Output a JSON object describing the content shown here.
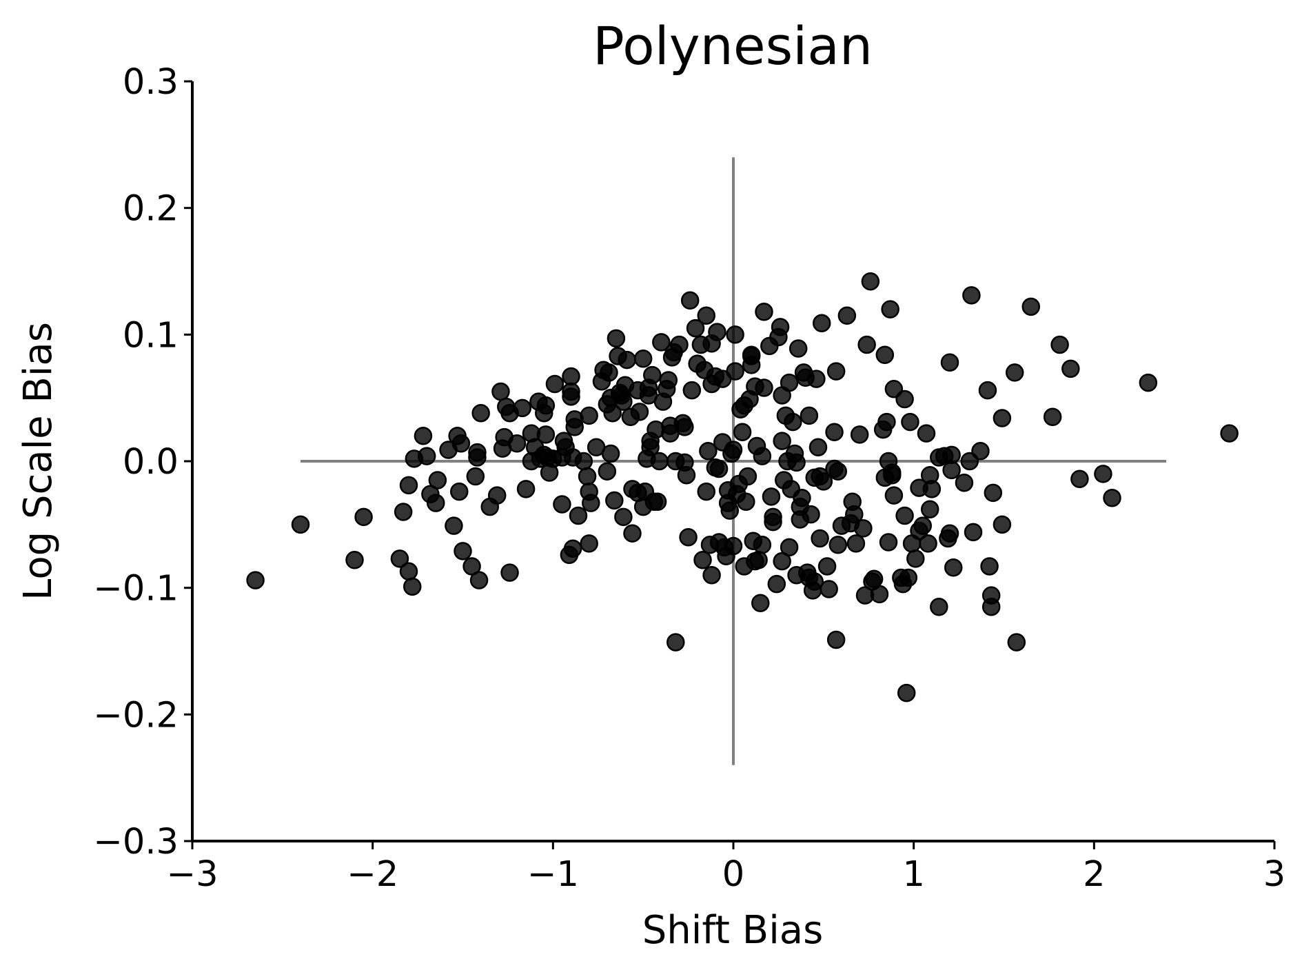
{
  "chart_data": {
    "type": "scatter",
    "title": "Polynesian",
    "xlabel": "Shift Bias",
    "ylabel": "Log Scale Bias",
    "xlim": [
      -3,
      3
    ],
    "ylim": [
      -0.3,
      0.3
    ],
    "x_ticks": [
      -3,
      -2,
      -1,
      0,
      1,
      2,
      3
    ],
    "x_tick_labels": [
      "−3",
      "−2",
      "−1",
      "0",
      "1",
      "2",
      "3"
    ],
    "y_ticks": [
      -0.3,
      -0.2,
      -0.1,
      0.0,
      0.1,
      0.2,
      0.3
    ],
    "y_tick_labels": [
      "−0.3",
      "−0.2",
      "−0.1",
      "0.0",
      "0.1",
      "0.2",
      "0.3"
    ],
    "grid": false,
    "point_color": "#000000",
    "point_opacity": 0.8,
    "reference_line_color": "#808080",
    "reference_lines": {
      "horizontal": {
        "y": 0,
        "x_range": [
          -2.4,
          2.4
        ]
      },
      "vertical": {
        "x": 0,
        "y_range": [
          -0.24,
          0.24
        ]
      }
    },
    "points": [
      [
        -2.65,
        -0.094
      ],
      [
        -2.4,
        -0.05
      ],
      [
        -2.1,
        -0.078
      ],
      [
        -2.05,
        -0.044
      ],
      [
        -1.85,
        -0.077
      ],
      [
        -1.83,
        -0.04
      ],
      [
        -1.8,
        -0.019
      ],
      [
        -1.8,
        -0.087
      ],
      [
        -1.78,
        -0.099
      ],
      [
        -1.77,
        0.002
      ],
      [
        -1.72,
        0.02
      ],
      [
        -1.7,
        0.004
      ],
      [
        -1.68,
        -0.026
      ],
      [
        -1.65,
        -0.033
      ],
      [
        -1.64,
        -0.015
      ],
      [
        -1.58,
        0.009
      ],
      [
        -1.55,
        -0.051
      ],
      [
        -1.53,
        0.02
      ],
      [
        -1.52,
        -0.024
      ],
      [
        -1.51,
        0.014
      ],
      [
        -1.5,
        -0.071
      ],
      [
        -1.45,
        -0.083
      ],
      [
        -1.43,
        -0.012
      ],
      [
        -1.42,
        0.007
      ],
      [
        -1.42,
        0.003
      ],
      [
        -1.41,
        -0.094
      ],
      [
        -1.4,
        0.038
      ],
      [
        -1.35,
        -0.036
      ],
      [
        -1.31,
        -0.027
      ],
      [
        -1.29,
        0.055
      ],
      [
        -1.28,
        0.01
      ],
      [
        -1.27,
        0.019
      ],
      [
        -1.26,
        0.043
      ],
      [
        -1.24,
        -0.088
      ],
      [
        -1.24,
        0.038
      ],
      [
        -1.2,
        0.014
      ],
      [
        -1.17,
        0.042
      ],
      [
        -1.15,
        -0.022
      ],
      [
        -1.12,
        0.022
      ],
      [
        -1.12,
        0.0
      ],
      [
        -1.1,
        0.011
      ],
      [
        -1.08,
        0.047
      ],
      [
        -1.07,
        0.002
      ],
      [
        -1.05,
        0.005
      ],
      [
        -1.05,
        0.038
      ],
      [
        -1.04,
        0.044
      ],
      [
        -1.04,
        0.021
      ],
      [
        -1.03,
        0.003
      ],
      [
        -1.02,
        -0.009
      ],
      [
        -1.0,
        0.002
      ],
      [
        -0.99,
        0.061
      ],
      [
        -0.95,
        0.003
      ],
      [
        -0.95,
        -0.034
      ],
      [
        -0.94,
        0.016
      ],
      [
        -0.93,
        0.011
      ],
      [
        -0.91,
        -0.074
      ],
      [
        -0.9,
        0.055
      ],
      [
        -0.9,
        0.067
      ],
      [
        -0.9,
        0.051
      ],
      [
        -0.89,
        -0.069
      ],
      [
        -0.89,
        0.003
      ],
      [
        -0.88,
        0.027
      ],
      [
        -0.88,
        0.033
      ],
      [
        -0.86,
        -0.043
      ],
      [
        -0.83,
        0.0
      ],
      [
        -0.81,
        -0.012
      ],
      [
        -0.8,
        0.036
      ],
      [
        -0.8,
        -0.065
      ],
      [
        -0.8,
        -0.024
      ],
      [
        -0.79,
        -0.033
      ],
      [
        -0.76,
        0.011
      ],
      [
        -0.73,
        0.063
      ],
      [
        -0.72,
        0.072
      ],
      [
        -0.7,
        -0.008
      ],
      [
        -0.7,
        0.045
      ],
      [
        -0.69,
        0.07
      ],
      [
        -0.68,
        0.05
      ],
      [
        -0.68,
        0.006
      ],
      [
        -0.67,
        0.038
      ],
      [
        -0.66,
        -0.031
      ],
      [
        -0.65,
        0.097
      ],
      [
        -0.64,
        0.083
      ],
      [
        -0.63,
        0.054
      ],
      [
        -0.62,
        0.052
      ],
      [
        -0.61,
        0.047
      ],
      [
        -0.61,
        -0.044
      ],
      [
        -0.6,
        0.06
      ],
      [
        -0.59,
        0.08
      ],
      [
        -0.57,
        0.035
      ],
      [
        -0.56,
        -0.057
      ],
      [
        -0.56,
        -0.022
      ],
      [
        -0.53,
        0.056
      ],
      [
        -0.53,
        -0.025
      ],
      [
        -0.52,
        0.039
      ],
      [
        -0.5,
        0.081
      ],
      [
        -0.5,
        -0.036
      ],
      [
        -0.49,
        -0.024
      ],
      [
        -0.48,
        0.002
      ],
      [
        -0.47,
        0.052
      ],
      [
        -0.47,
        0.058
      ],
      [
        -0.46,
        0.016
      ],
      [
        -0.46,
        0.011
      ],
      [
        -0.45,
        0.068
      ],
      [
        -0.44,
        -0.032
      ],
      [
        -0.43,
        0.025
      ],
      [
        -0.42,
        -0.032
      ],
      [
        -0.41,
        0.0
      ],
      [
        -0.4,
        0.094
      ],
      [
        -0.39,
        0.047
      ],
      [
        -0.37,
        0.057
      ],
      [
        -0.36,
        0.064
      ],
      [
        -0.35,
        0.028
      ],
      [
        -0.35,
        0.022
      ],
      [
        -0.34,
        0.082
      ],
      [
        -0.33,
        0.086
      ],
      [
        -0.32,
        0.0
      ],
      [
        -0.32,
        -0.143
      ],
      [
        -0.3,
        0.092
      ],
      [
        -0.28,
        0.03
      ],
      [
        -0.27,
        0.027
      ],
      [
        -0.27,
        -0.001
      ],
      [
        -0.26,
        -0.011
      ],
      [
        -0.25,
        -0.06
      ],
      [
        -0.24,
        0.127
      ],
      [
        -0.23,
        0.056
      ],
      [
        -0.21,
        0.105
      ],
      [
        -0.2,
        0.077
      ],
      [
        -0.18,
        0.092
      ],
      [
        -0.17,
        -0.078
      ],
      [
        -0.16,
        0.072
      ],
      [
        -0.15,
        0.115
      ],
      [
        -0.15,
        -0.024
      ],
      [
        -0.14,
        0.008
      ],
      [
        -0.13,
        -0.066
      ],
      [
        -0.12,
        -0.09
      ],
      [
        -0.12,
        0.093
      ],
      [
        -0.12,
        0.061
      ],
      [
        -0.1,
        -0.005
      ],
      [
        -0.1,
        0.067
      ],
      [
        -0.09,
        0.102
      ],
      [
        -0.08,
        -0.064
      ],
      [
        -0.08,
        -0.006
      ],
      [
        -0.06,
        0.015
      ],
      [
        -0.06,
        0.065
      ],
      [
        -0.05,
        -0.068
      ],
      [
        -0.04,
        -0.075
      ],
      [
        -0.03,
        -0.023
      ],
      [
        -0.03,
        -0.033
      ],
      [
        -0.02,
        -0.039
      ],
      [
        -0.01,
        0.006
      ],
      [
        0.0,
        0.009
      ],
      [
        0.0,
        -0.067
      ],
      [
        0.01,
        0.1
      ],
      [
        0.01,
        0.071
      ],
      [
        0.02,
        -0.026
      ],
      [
        0.03,
        -0.018
      ],
      [
        0.04,
        0.041
      ],
      [
        0.05,
        0.023
      ],
      [
        0.06,
        -0.083
      ],
      [
        0.06,
        0.044
      ],
      [
        0.07,
        -0.032
      ],
      [
        0.08,
        -0.012
      ],
      [
        0.09,
        0.049
      ],
      [
        0.1,
        0.076
      ],
      [
        0.1,
        0.083
      ],
      [
        0.1,
        0.084
      ],
      [
        0.11,
        -0.063
      ],
      [
        0.12,
        -0.079
      ],
      [
        0.12,
        0.059
      ],
      [
        0.13,
        0.012
      ],
      [
        0.14,
        -0.078
      ],
      [
        0.15,
        -0.112
      ],
      [
        0.16,
        0.004
      ],
      [
        0.16,
        -0.066
      ],
      [
        0.17,
        0.058
      ],
      [
        0.17,
        0.118
      ],
      [
        0.2,
        0.091
      ],
      [
        0.21,
        -0.028
      ],
      [
        0.22,
        -0.048
      ],
      [
        0.22,
        -0.044
      ],
      [
        0.24,
        -0.097
      ],
      [
        0.25,
        0.098
      ],
      [
        0.26,
        0.106
      ],
      [
        0.27,
        -0.079
      ],
      [
        0.27,
        0.016
      ],
      [
        0.27,
        0.052
      ],
      [
        0.28,
        -0.015
      ],
      [
        0.29,
        0.036
      ],
      [
        0.3,
        0.0
      ],
      [
        0.31,
        -0.068
      ],
      [
        0.31,
        0.062
      ],
      [
        0.32,
        -0.022
      ],
      [
        0.33,
        0.031
      ],
      [
        0.34,
        0.006
      ],
      [
        0.35,
        -0.09
      ],
      [
        0.35,
        -0.001
      ],
      [
        0.36,
        0.089
      ],
      [
        0.37,
        -0.046
      ],
      [
        0.37,
        -0.036
      ],
      [
        0.38,
        -0.029
      ],
      [
        0.39,
        0.07
      ],
      [
        0.4,
        0.066
      ],
      [
        0.41,
        -0.088
      ],
      [
        0.42,
        0.036
      ],
      [
        0.42,
        -0.092
      ],
      [
        0.43,
        -0.042
      ],
      [
        0.44,
        -0.102
      ],
      [
        0.45,
        -0.095
      ],
      [
        0.45,
        -0.013
      ],
      [
        0.46,
        0.065
      ],
      [
        0.47,
        0.011
      ],
      [
        0.48,
        -0.061
      ],
      [
        0.48,
        -0.012
      ],
      [
        0.49,
        0.109
      ],
      [
        0.5,
        -0.016
      ],
      [
        0.52,
        -0.083
      ],
      [
        0.53,
        -0.101
      ],
      [
        0.56,
        0.023
      ],
      [
        0.56,
        -0.006
      ],
      [
        0.57,
        0.071
      ],
      [
        0.57,
        -0.141
      ],
      [
        0.58,
        -0.066
      ],
      [
        0.58,
        -0.008
      ],
      [
        0.6,
        -0.051
      ],
      [
        0.63,
        0.115
      ],
      [
        0.65,
        -0.049
      ],
      [
        0.66,
        -0.032
      ],
      [
        0.67,
        -0.042
      ],
      [
        0.68,
        -0.065
      ],
      [
        0.7,
        0.021
      ],
      [
        0.72,
        -0.053
      ],
      [
        0.73,
        -0.106
      ],
      [
        0.74,
        0.092
      ],
      [
        0.76,
        0.142
      ],
      [
        0.77,
        -0.095
      ],
      [
        0.78,
        -0.093
      ],
      [
        0.81,
        -0.105
      ],
      [
        0.83,
        0.025
      ],
      [
        0.84,
        -0.013
      ],
      [
        0.84,
        0.084
      ],
      [
        0.85,
        0.031
      ],
      [
        0.86,
        -0.064
      ],
      [
        0.86,
        0.0
      ],
      [
        0.87,
        0.12
      ],
      [
        0.88,
        -0.009
      ],
      [
        0.88,
        -0.011
      ],
      [
        0.89,
        -0.027
      ],
      [
        0.89,
        0.057
      ],
      [
        0.93,
        -0.092
      ],
      [
        0.94,
        -0.097
      ],
      [
        0.95,
        -0.043
      ],
      [
        0.95,
        0.049
      ],
      [
        0.96,
        -0.183
      ],
      [
        0.97,
        -0.092
      ],
      [
        0.98,
        0.031
      ],
      [
        0.99,
        -0.065
      ],
      [
        1.01,
        -0.077
      ],
      [
        1.03,
        -0.055
      ],
      [
        1.03,
        -0.021
      ],
      [
        1.05,
        -0.051
      ],
      [
        1.07,
        0.022
      ],
      [
        1.08,
        -0.065
      ],
      [
        1.09,
        -0.038
      ],
      [
        1.09,
        -0.011
      ],
      [
        1.1,
        -0.022
      ],
      [
        1.14,
        0.003
      ],
      [
        1.14,
        -0.115
      ],
      [
        1.17,
        0.004
      ],
      [
        1.19,
        -0.061
      ],
      [
        1.2,
        0.078
      ],
      [
        1.2,
        -0.057
      ],
      [
        1.21,
        -0.007
      ],
      [
        1.21,
        0.005
      ],
      [
        1.22,
        -0.084
      ],
      [
        1.28,
        -0.017
      ],
      [
        1.31,
        0.0
      ],
      [
        1.32,
        0.131
      ],
      [
        1.33,
        -0.056
      ],
      [
        1.37,
        0.008
      ],
      [
        1.41,
        0.056
      ],
      [
        1.42,
        -0.083
      ],
      [
        1.43,
        -0.106
      ],
      [
        1.43,
        -0.115
      ],
      [
        1.44,
        -0.025
      ],
      [
        1.49,
        0.034
      ],
      [
        1.49,
        -0.05
      ],
      [
        1.56,
        0.07
      ],
      [
        1.57,
        -0.143
      ],
      [
        1.65,
        0.122
      ],
      [
        1.77,
        0.035
      ],
      [
        1.81,
        0.092
      ],
      [
        1.87,
        0.073
      ],
      [
        1.92,
        -0.014
      ],
      [
        2.05,
        -0.01
      ],
      [
        2.1,
        -0.029
      ],
      [
        2.3,
        0.062
      ],
      [
        2.75,
        0.022
      ]
    ]
  }
}
